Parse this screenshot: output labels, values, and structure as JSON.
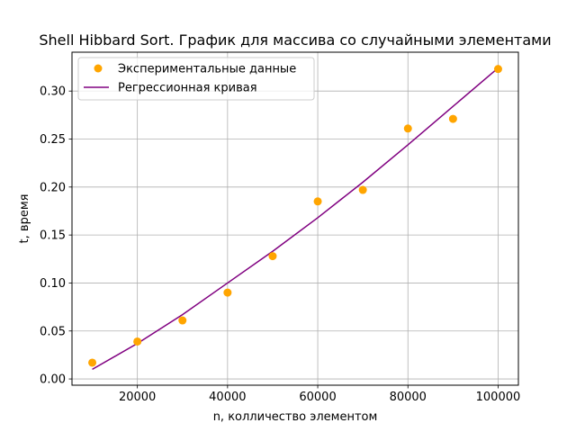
{
  "chart_data": {
    "type": "scatter",
    "title": "Shell Hibbard Sort. График для массива со случайными элементами",
    "xlabel": "n, колличество элементом",
    "ylabel": "t, время",
    "xlim": [
      5500,
      104500
    ],
    "ylim": [
      -0.0065,
      0.3405
    ],
    "xticks": [
      20000,
      40000,
      60000,
      80000,
      100000
    ],
    "xtick_labels": [
      "20000",
      "40000",
      "60000",
      "80000",
      "100000"
    ],
    "yticks": [
      0.0,
      0.05,
      0.1,
      0.15,
      0.2,
      0.25,
      0.3
    ],
    "ytick_labels": [
      "0.00",
      "0.05",
      "0.10",
      "0.15",
      "0.20",
      "0.25",
      "0.30"
    ],
    "grid": true,
    "legend_position": "top-left",
    "series": [
      {
        "name": "Экспериментальные данные",
        "kind": "scatter",
        "color": "#ffa500",
        "x": [
          10000,
          20000,
          30000,
          40000,
          50000,
          60000,
          70000,
          80000,
          90000,
          100000
        ],
        "y": [
          0.017,
          0.039,
          0.061,
          0.09,
          0.128,
          0.185,
          0.197,
          0.261,
          0.271,
          0.323
        ]
      },
      {
        "name": "Регрессионная кривая",
        "kind": "line",
        "color": "#800080",
        "x": [
          10000,
          20000,
          30000,
          40000,
          50000,
          60000,
          70000,
          80000,
          90000,
          100000
        ],
        "y": [
          0.01,
          0.037,
          0.067,
          0.1,
          0.133,
          0.168,
          0.205,
          0.244,
          0.284,
          0.324
        ]
      }
    ]
  }
}
